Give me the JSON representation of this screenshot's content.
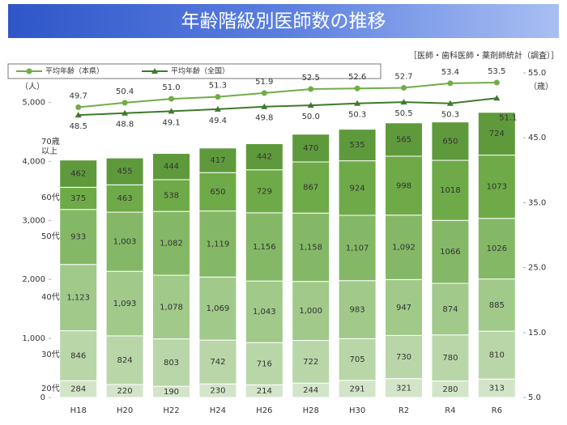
{
  "chart_data": {
    "type": "bar",
    "stacked": true,
    "title": "年齢階級別医師数の推移",
    "source": "［医師・歯科医師・薬剤師統計（調査）］",
    "ylabel": "（人）",
    "y2label": "（歳）",
    "categories": [
      "H18",
      "H20",
      "H22",
      "H24",
      "H26",
      "H28",
      "H30",
      "R2",
      "R4",
      "R6"
    ],
    "series": [
      {
        "name": "20代",
        "color": "#d3e5c9",
        "values": [
          284,
          220,
          190,
          230,
          214,
          244,
          291,
          321,
          280,
          313
        ]
      },
      {
        "name": "30代",
        "color": "#b9d6a8",
        "values": [
          846,
          824,
          803,
          742,
          716,
          722,
          705,
          730,
          780,
          810
        ]
      },
      {
        "name": "40代",
        "color": "#a0c98a",
        "values": [
          1123,
          1093,
          1078,
          1069,
          1043,
          1000,
          983,
          947,
          874,
          885
        ],
        "value_labels": [
          "1,123",
          "1,093",
          "1,078",
          "1,069",
          "1,043",
          "1,000",
          "983",
          "947",
          "874",
          "885"
        ]
      },
      {
        "name": "50代",
        "color": "#84b866",
        "values": [
          933,
          1003,
          1082,
          1119,
          1156,
          1158,
          1107,
          1092,
          1066,
          1026
        ],
        "value_labels": [
          "933",
          "1,003",
          "1,082",
          "1,119",
          "1,156",
          "1,158",
          "1,107",
          "1,092",
          "1066",
          "1026"
        ]
      },
      {
        "name": "60代",
        "color": "#6eaa47",
        "values": [
          375,
          463,
          538,
          650,
          729,
          867,
          924,
          998,
          1018,
          1073
        ]
      },
      {
        "name": "70歳以上",
        "color": "#5e9a3b",
        "values": [
          462,
          455,
          444,
          417,
          442,
          470,
          535,
          565,
          650,
          724
        ]
      },
      {
        "name": "平均年齢（本県）",
        "type": "line",
        "axis": "y2",
        "marker": "circle",
        "color": "#70ad47",
        "values": [
          49.7,
          50.4,
          51.0,
          51.3,
          51.9,
          52.5,
          52.6,
          52.7,
          53.4,
          53.5
        ],
        "value_labels": [
          "49.7",
          "50.4",
          "51.0",
          "51.3",
          "51.9",
          "52.5",
          "52.6",
          "52.7",
          "53.4",
          "53.5"
        ]
      },
      {
        "name": "平均年齢（全国）",
        "type": "line",
        "axis": "y2",
        "marker": "triangle",
        "color": "#3f7a2b",
        "values": [
          48.5,
          48.8,
          49.1,
          49.4,
          49.8,
          50.0,
          50.3,
          50.5,
          50.3,
          51.1
        ],
        "value_labels": [
          "48.5",
          "48.8",
          "49.1",
          "49.4",
          "49.8",
          "50.0",
          "50.3",
          "50.5",
          "50.3",
          "51.1"
        ]
      }
    ],
    "ylim": [
      0,
      5500
    ],
    "yticks": [
      0,
      {
        "value": 1000,
        "label": "1,000"
      },
      {
        "value": 2000,
        "label": "2,000"
      },
      {
        "value": 3000,
        "label": "3,000"
      },
      {
        "value": 4000,
        "label": "4,000"
      },
      {
        "value": 5000,
        "label": "5,000"
      }
    ],
    "y2lim": [
      5,
      55
    ],
    "y2ticks": [
      {
        "value": 5,
        "label": "5.0"
      },
      {
        "value": 15,
        "label": "15.0"
      },
      {
        "value": 25,
        "label": "25.0"
      },
      {
        "value": 35,
        "label": "35.0"
      },
      {
        "value": 45,
        "label": "45.0"
      },
      {
        "value": 55,
        "label": "55.0"
      }
    ]
  }
}
